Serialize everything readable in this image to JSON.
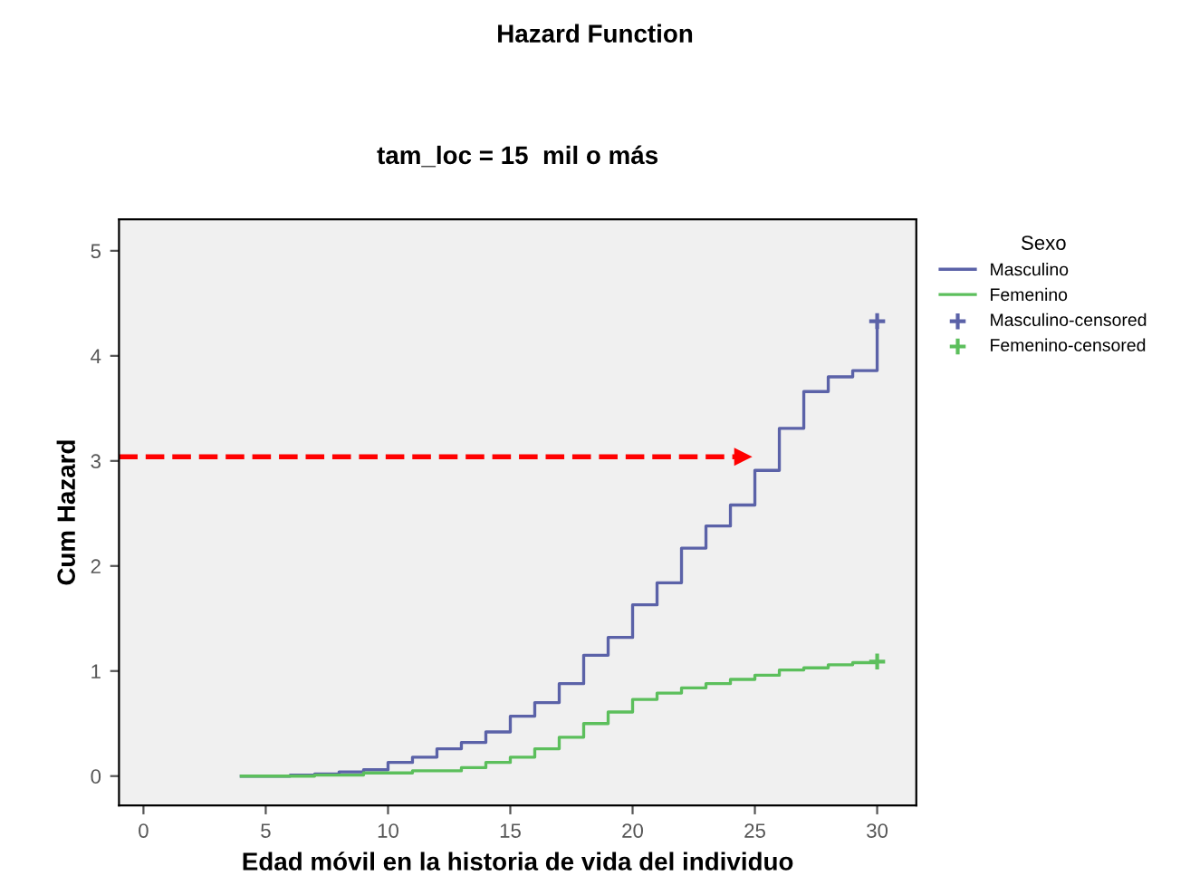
{
  "chart_data": {
    "type": "step",
    "title": "Hazard Function",
    "subtitle": "tam_loc = 15  mil o más",
    "xlabel": "Edad móvil en la historia de vida del individuo",
    "ylabel": "Cum Hazard",
    "legend_title": "Sexo",
    "legend": "right",
    "xlim": [
      -1,
      31.6
    ],
    "ylim": [
      -0.28,
      5.3
    ],
    "xticks": [
      0,
      5,
      10,
      15,
      20,
      25,
      30
    ],
    "yticks": [
      0,
      1,
      2,
      3,
      4,
      5
    ],
    "grid": false,
    "series": [
      {
        "name": "Masculino",
        "color": "#5b62a8",
        "x": [
          4,
          6,
          7,
          8,
          9,
          10,
          11,
          12,
          13,
          14,
          15,
          16,
          17,
          18,
          19,
          20,
          21,
          22,
          23,
          24,
          25,
          26,
          27,
          28,
          29,
          30
        ],
        "values": [
          0,
          0.01,
          0.02,
          0.04,
          0.06,
          0.13,
          0.18,
          0.26,
          0.32,
          0.42,
          0.57,
          0.7,
          0.88,
          1.15,
          1.32,
          1.63,
          1.84,
          2.17,
          2.38,
          2.58,
          2.91,
          3.31,
          3.66,
          3.8,
          3.86,
          4.33
        ]
      },
      {
        "name": "Femenino",
        "color": "#5cbf5c",
        "x": [
          4,
          7,
          9,
          11,
          13,
          14,
          15,
          16,
          17,
          18,
          19,
          20,
          21,
          22,
          23,
          24,
          25,
          26,
          27,
          28,
          29,
          30
        ],
        "values": [
          0,
          0.01,
          0.03,
          0.05,
          0.08,
          0.13,
          0.18,
          0.26,
          0.37,
          0.5,
          0.61,
          0.73,
          0.79,
          0.84,
          0.88,
          0.92,
          0.96,
          1.01,
          1.03,
          1.06,
          1.08,
          1.09
        ]
      },
      {
        "name": "Masculino-censored",
        "type": "scatter",
        "marker": "cross",
        "color": "#5b62a8",
        "x": [
          30
        ],
        "values": [
          4.33
        ]
      },
      {
        "name": "Femenino-censored",
        "type": "scatter",
        "marker": "cross",
        "color": "#5cbf5c",
        "x": [
          30
        ],
        "values": [
          1.09
        ]
      },
      {
        "type": "line",
        "color": "#ff0000",
        "line_style": "dashed",
        "x": [
          -1,
          24.6
        ],
        "values": [
          3.04,
          3.04
        ]
      }
    ]
  }
}
